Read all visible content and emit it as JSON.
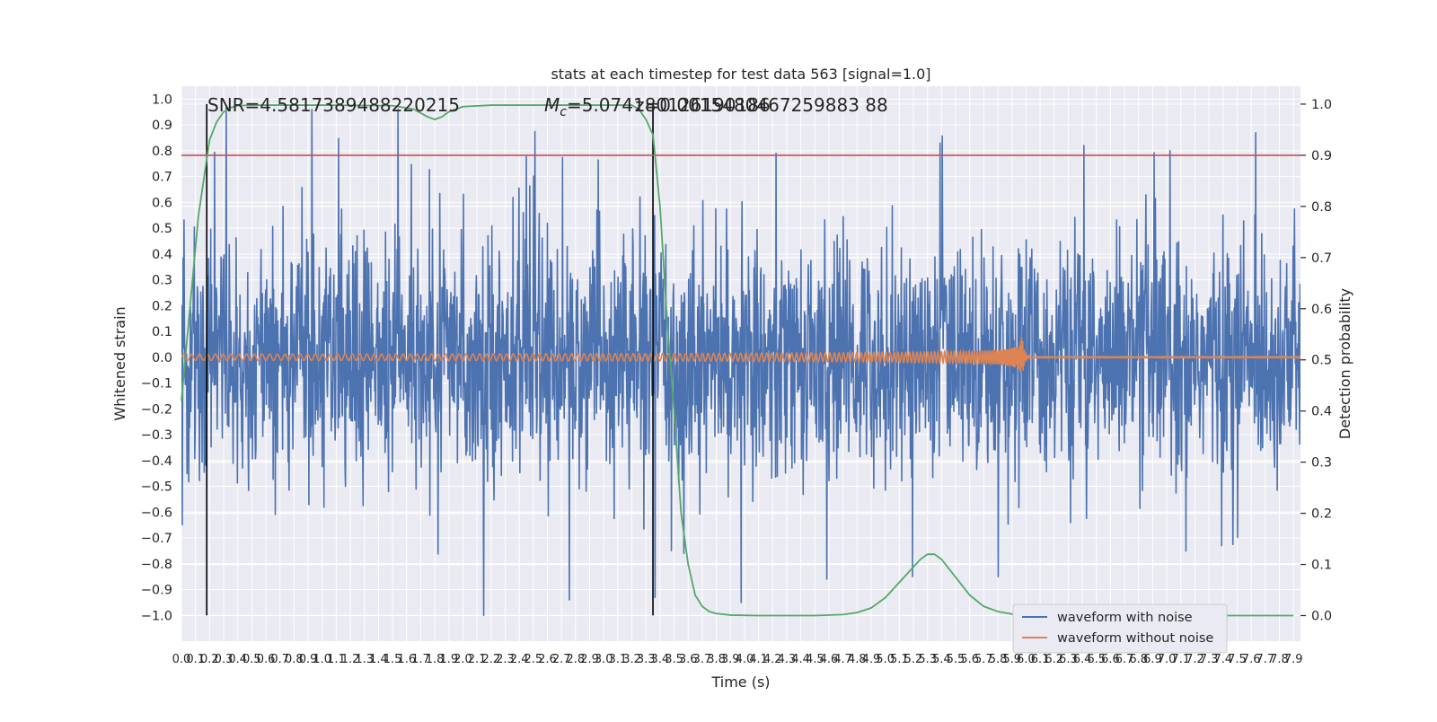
{
  "chart_data": {
    "type": "line",
    "title": "stats at each timestep for test data 563 [signal=1.0]",
    "xlabel": "Time (s)",
    "ylabel": "Whitened strain",
    "ylabel_right": "Detection probability",
    "xlim": [
      0.0,
      7.95
    ],
    "ylim": [
      -1.1,
      1.05
    ],
    "ylim_right": [
      -0.05,
      1.035
    ],
    "x_ticks": [
      "0.0",
      "0.1",
      "0.2",
      "0.3",
      "0.4",
      "0.5",
      "0.6",
      "0.7",
      "0.8",
      "0.9",
      "1.0",
      "1.1",
      "1.2",
      "1.3",
      "1.4",
      "1.5",
      "1.6",
      "1.7",
      "1.8",
      "1.9",
      "2.0",
      "2.1",
      "2.2",
      "2.3",
      "2.4",
      "2.5",
      "2.6",
      "2.7",
      "2.8",
      "2.9",
      "3.0",
      "3.1",
      "3.2",
      "3.3",
      "3.4",
      "3.5",
      "3.6",
      "3.7",
      "3.8",
      "3.9",
      "4.0",
      "4.1",
      "4.2",
      "4.3",
      "4.4",
      "4.5",
      "4.6",
      "4.7",
      "4.8",
      "4.9",
      "5.0",
      "5.1",
      "5.2",
      "5.3",
      "5.4",
      "5.5",
      "5.6",
      "5.7",
      "5.8",
      "5.9",
      "6.0",
      "6.1",
      "6.2",
      "6.3",
      "6.4",
      "6.5",
      "6.6",
      "6.7",
      "6.8",
      "6.9",
      "7.0",
      "7.1",
      "7.2",
      "7.3",
      "7.4",
      "7.5",
      "7.6",
      "7.7",
      "7.8",
      "7.9"
    ],
    "y_ticks": [
      "1.0",
      "0.9",
      "0.8",
      "0.7",
      "0.6",
      "0.5",
      "0.4",
      "0.3",
      "0.2",
      "0.1",
      "0.0",
      "-0.1",
      "-0.2",
      "-0.3",
      "-0.4",
      "-0.5",
      "-0.6",
      "-0.7",
      "-0.8",
      "-0.9",
      "-1.0"
    ],
    "y_ticks_right": [
      "1.0",
      "0.9",
      "0.8",
      "0.7",
      "0.6",
      "0.5",
      "0.4",
      "0.3",
      "0.2",
      "0.1",
      "0.0"
    ],
    "annotations": {
      "snr": "SNR=4.5817389488220215",
      "mc_prefix": "M",
      "mc_sub": "c",
      "mc_value": "=5.074180126190186",
      "z_text": "z=0.0015480467259883 88"
    },
    "vlines_x": [
      0.18,
      3.35
    ],
    "threshold_right": 0.9,
    "colors": {
      "noise": "#4c72b0",
      "clean": "#dd8452",
      "prob": "#55a868",
      "threshold": "#c44e52",
      "vline": "#000000",
      "plot_bg": "#eaeaf2",
      "grid": "#ffffff"
    },
    "series": [
      {
        "name": "waveform with noise",
        "type": "noise-band",
        "x_range": [
          0.0,
          7.95
        ],
        "typical_amplitude": 0.4,
        "peak_values": [
          0.97,
          0.96,
          0.96,
          -1.0,
          -0.94,
          -0.93,
          -0.95,
          -0.86,
          -0.85,
          -0.85,
          0.82,
          0.8,
          0.87
        ]
      },
      {
        "name": "waveform without noise",
        "type": "chirp",
        "start_amplitude": 0.012,
        "peak_amplitude": 0.1,
        "merger_time": 5.97,
        "ringdown_end": 6.05,
        "x_range": [
          0.0,
          7.95
        ]
      },
      {
        "name": "detection probability",
        "axis": "right",
        "x": [
          0.0,
          0.12,
          0.2,
          0.25,
          0.3,
          0.35,
          0.4,
          0.5,
          0.7,
          1.0,
          1.5,
          1.65,
          1.75,
          1.8,
          1.85,
          1.9,
          2.0,
          2.2,
          3.0,
          3.2,
          3.25,
          3.3,
          3.35,
          3.4,
          3.45,
          3.5,
          3.55,
          3.6,
          3.65,
          3.7,
          3.75,
          3.8,
          3.9,
          4.1,
          4.5,
          4.7,
          4.8,
          4.9,
          5.0,
          5.1,
          5.2,
          5.25,
          5.3,
          5.35,
          5.4,
          5.5,
          5.6,
          5.7,
          5.8,
          5.9,
          6.0,
          6.2,
          6.6,
          7.0,
          7.4,
          7.9
        ],
        "y": [
          0.42,
          0.78,
          0.93,
          0.965,
          0.985,
          0.993,
          0.997,
          0.998,
          0.998,
          0.998,
          0.997,
          0.99,
          0.975,
          0.97,
          0.975,
          0.985,
          0.995,
          0.998,
          0.998,
          0.998,
          0.99,
          0.97,
          0.94,
          0.8,
          0.58,
          0.4,
          0.2,
          0.1,
          0.04,
          0.018,
          0.008,
          0.004,
          0.001,
          0.0,
          0.0,
          0.002,
          0.006,
          0.015,
          0.035,
          0.065,
          0.095,
          0.11,
          0.12,
          0.12,
          0.11,
          0.075,
          0.04,
          0.018,
          0.008,
          0.003,
          0.001,
          0.0,
          0.0,
          0.0,
          0.0,
          0.0
        ]
      }
    ],
    "legend": {
      "position": "lower right",
      "entries": [
        "waveform with noise",
        "waveform without noise"
      ]
    },
    "grid": true
  }
}
